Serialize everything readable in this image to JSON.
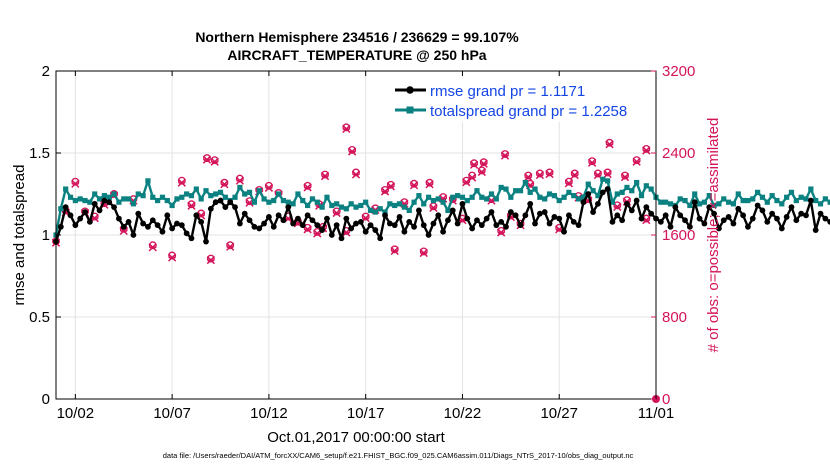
{
  "chart_data": {
    "type": "line",
    "title_line1": "Northern Hemisphere 234516 / 236629 = 99.107%",
    "title_line2": "AIRCRAFT_TEMPERATURE @ 250 hPa",
    "xlabel": "Oct.01,2017 00:00:00 start",
    "ylabel_left": "rmse and totalspread",
    "ylabel_right": "# of obs: o=possible; ×=assimilated",
    "x_tick_labels": [
      "10/02",
      "10/07",
      "10/12",
      "10/17",
      "10/22",
      "10/27",
      "11/01"
    ],
    "x_tick_days": [
      2,
      7,
      12,
      17,
      22,
      27,
      32
    ],
    "xlim": [
      1.0,
      32.0
    ],
    "ylim_left": [
      0,
      2
    ],
    "y_ticks_left": [
      "0",
      "0.5",
      "1",
      "1.5",
      "2"
    ],
    "ylim_right": [
      0,
      3200
    ],
    "y_ticks_right": [
      "0",
      "800",
      "1600",
      "2400",
      "3200"
    ],
    "time_step_days": 0.25,
    "legend_location": "top-right",
    "series": [
      {
        "name": "rmse grand pr = 1.1171",
        "color": "#000000",
        "axis": "left",
        "values": [
          0.96,
          1.05,
          1.17,
          1.12,
          1.06,
          1.1,
          1.14,
          1.08,
          1.19,
          1.15,
          1.21,
          1.2,
          1.17,
          1.1,
          1.05,
          1.08,
          1.0,
          1.13,
          1.07,
          1.05,
          1.09,
          1.06,
          1.02,
          1.12,
          1.04,
          1.07,
          1.06,
          1.01,
          0.98,
          1.12,
          1.08,
          0.96,
          1.16,
          1.2,
          1.21,
          1.17,
          1.2,
          1.17,
          1.07,
          1.13,
          1.09,
          1.05,
          1.04,
          1.07,
          1.11,
          1.05,
          1.12,
          1.09,
          1.17,
          1.07,
          1.1,
          1.06,
          1.12,
          1.09,
          1.06,
          1.03,
          1.1,
          1.0,
          1.06,
          0.98,
          1.1,
          1.04,
          1.07,
          1.08,
          1.02,
          1.06,
          1.03,
          0.98,
          1.12,
          1.07,
          1.06,
          1.11,
          1.02,
          1.08,
          1.05,
          1.15,
          1.06,
          1.0,
          1.07,
          1.12,
          1.02,
          1.09,
          1.15,
          1.07,
          1.19,
          1.1,
          1.04,
          1.09,
          1.06,
          1.1,
          1.14,
          1.06,
          1.08,
          1.05,
          1.14,
          1.12,
          1.06,
          1.12,
          1.19,
          1.07,
          1.13,
          1.14,
          1.07,
          1.11,
          1.1,
          1.02,
          1.12,
          1.08,
          1.06,
          1.2,
          1.25,
          1.14,
          1.19,
          1.26,
          1.28,
          1.08,
          1.12,
          1.09,
          1.19,
          1.15,
          1.21,
          1.1,
          1.17,
          1.13,
          1.1,
          1.08,
          1.12,
          1.05,
          1.17,
          1.12,
          1.09,
          1.05,
          1.2,
          1.1,
          1.07,
          1.17,
          1.13,
          1.04,
          1.09,
          1.11,
          1.07,
          1.16,
          1.12,
          1.05,
          1.1,
          1.18,
          1.15,
          1.08,
          1.13,
          1.1,
          1.04,
          1.11,
          1.17,
          1.09,
          1.13,
          1.12,
          1.21,
          1.03,
          1.13,
          1.1,
          1.08,
          1.12,
          1.15,
          1.04,
          1.1,
          1.09,
          1.15,
          1.2,
          1.12,
          1.07,
          0.98,
          1.06,
          1.05,
          1.06
        ]
      },
      {
        "name": "totalspread grand pr = 1.2258",
        "color": "#0b8281",
        "axis": "left",
        "values": [
          1.0,
          1.16,
          1.28,
          1.23,
          1.21,
          1.22,
          1.21,
          1.2,
          1.25,
          1.22,
          1.24,
          1.23,
          1.25,
          1.2,
          1.22,
          1.22,
          1.19,
          1.25,
          1.24,
          1.33,
          1.23,
          1.21,
          1.23,
          1.21,
          1.18,
          1.22,
          1.23,
          1.25,
          1.24,
          1.28,
          1.22,
          1.27,
          1.24,
          1.25,
          1.26,
          1.23,
          1.21,
          1.23,
          1.29,
          1.25,
          1.26,
          1.2,
          1.27,
          1.22,
          1.2,
          1.21,
          1.25,
          1.21,
          1.2,
          1.19,
          1.25,
          1.21,
          1.18,
          1.22,
          1.2,
          1.17,
          1.23,
          1.18,
          1.19,
          1.17,
          1.16,
          1.19,
          1.17,
          1.18,
          1.2,
          1.15,
          1.14,
          1.16,
          1.14,
          1.19,
          1.18,
          1.19,
          1.17,
          1.15,
          1.2,
          1.24,
          1.19,
          1.23,
          1.21,
          1.22,
          1.2,
          1.15,
          1.23,
          1.24,
          1.23,
          1.21,
          1.23,
          1.27,
          1.23,
          1.22,
          1.25,
          1.22,
          1.29,
          1.28,
          1.23,
          1.27,
          1.27,
          1.32,
          1.26,
          1.28,
          1.23,
          1.22,
          1.25,
          1.24,
          1.21,
          1.23,
          1.26,
          1.24,
          1.22,
          1.23,
          1.31,
          1.27,
          1.24,
          1.34,
          1.33,
          1.2,
          1.25,
          1.26,
          1.29,
          1.27,
          1.32,
          1.24,
          1.3,
          1.28,
          1.23,
          1.2,
          1.2,
          1.19,
          1.18,
          1.22,
          1.21,
          1.18,
          1.25,
          1.19,
          1.2,
          1.24,
          1.18,
          1.19,
          1.22,
          1.2,
          1.19,
          1.25,
          1.21,
          1.21,
          1.22,
          1.26,
          1.23,
          1.2,
          1.24,
          1.21,
          1.19,
          1.23,
          1.26,
          1.21,
          1.23,
          1.22,
          1.28,
          1.21,
          1.19,
          1.22,
          1.2,
          1.23,
          1.25,
          1.17,
          1.2,
          1.21,
          1.25,
          1.28,
          1.21,
          1.2,
          1.14,
          1.17,
          1.16,
          1.15
        ]
      }
    ],
    "obs_series": [
      {
        "name": "possible (o)",
        "color": "#d4145a",
        "axis": "right",
        "points": [
          [
            1.0,
            1540
          ],
          [
            1.5,
            1840
          ],
          [
            2.0,
            2120
          ],
          [
            2.5,
            1830
          ],
          [
            3.0,
            1780
          ],
          [
            3.5,
            1910
          ],
          [
            4.0,
            2000
          ],
          [
            4.5,
            1660
          ],
          [
            5.0,
            1950
          ],
          [
            6.0,
            1500
          ],
          [
            7.0,
            1400
          ],
          [
            7.5,
            2130
          ],
          [
            8.0,
            1900
          ],
          [
            8.5,
            1810
          ],
          [
            9.0,
            1370
          ],
          [
            10.0,
            1500
          ],
          [
            10.5,
            2150
          ],
          [
            11.0,
            1930
          ],
          [
            11.5,
            2040
          ],
          [
            12.0,
            2080
          ],
          [
            12.5,
            2010
          ],
          [
            13.0,
            1780
          ],
          [
            13.5,
            1730
          ],
          [
            14.0,
            1670
          ],
          [
            14.5,
            1630
          ],
          [
            14.8,
            1680
          ],
          [
            16.0,
            1640
          ],
          [
            16.5,
            2210
          ],
          [
            17.0,
            1780
          ],
          [
            17.5,
            1860
          ],
          [
            18.0,
            2040
          ],
          [
            18.5,
            1460
          ],
          [
            19.0,
            1920
          ],
          [
            19.5,
            2100
          ],
          [
            20.0,
            1440
          ],
          [
            20.5,
            1880
          ],
          [
            21.0,
            1970
          ],
          [
            21.5,
            1950
          ],
          [
            22.0,
            1760
          ],
          [
            22.5,
            2180
          ],
          [
            23.0,
            2230
          ],
          [
            23.5,
            1950
          ],
          [
            24.0,
            1640
          ],
          [
            24.5,
            1790
          ],
          [
            25.0,
            1710
          ],
          [
            25.5,
            2100
          ],
          [
            26.0,
            2200
          ],
          [
            26.5,
            2210
          ],
          [
            27.0,
            1670
          ],
          [
            27.5,
            2120
          ],
          [
            28.0,
            1980
          ],
          [
            28.5,
            1950
          ],
          [
            29.0,
            2200
          ],
          [
            29.5,
            2210
          ],
          [
            30.0,
            1890
          ],
          [
            30.5,
            1940
          ],
          [
            31.0,
            2330
          ],
          [
            31.5,
            2440
          ]
        ]
      },
      {
        "name": "assimilated (×)",
        "color": "#d4145a",
        "axis": "right",
        "points": [
          [
            1.0,
            1525
          ],
          [
            1.5,
            1820
          ],
          [
            2.0,
            2100
          ],
          [
            2.5,
            1815
          ],
          [
            3.0,
            1765
          ],
          [
            3.5,
            1895
          ],
          [
            4.0,
            1985
          ],
          [
            4.5,
            1640
          ],
          [
            5.0,
            1935
          ],
          [
            6.0,
            1480
          ],
          [
            7.0,
            1380
          ],
          [
            7.5,
            2110
          ],
          [
            8.0,
            1885
          ],
          [
            8.5,
            1790
          ],
          [
            9.0,
            1355
          ],
          [
            10.0,
            1485
          ],
          [
            10.5,
            2130
          ],
          [
            11.0,
            1915
          ],
          [
            11.5,
            2025
          ],
          [
            12.0,
            2060
          ],
          [
            12.5,
            1995
          ],
          [
            13.0,
            1760
          ],
          [
            13.5,
            1715
          ],
          [
            14.0,
            1655
          ],
          [
            14.5,
            1615
          ],
          [
            14.8,
            1665
          ],
          [
            16.0,
            1625
          ],
          [
            16.5,
            2190
          ],
          [
            17.0,
            1765
          ],
          [
            17.5,
            1845
          ],
          [
            18.0,
            2025
          ],
          [
            18.5,
            1445
          ],
          [
            19.0,
            1905
          ],
          [
            19.5,
            2085
          ],
          [
            20.0,
            1425
          ],
          [
            20.5,
            1865
          ],
          [
            21.0,
            1955
          ],
          [
            21.5,
            1935
          ],
          [
            22.0,
            1745
          ],
          [
            22.5,
            2160
          ],
          [
            23.0,
            2215
          ],
          [
            23.5,
            1935
          ],
          [
            24.0,
            1625
          ],
          [
            24.5,
            1775
          ],
          [
            25.0,
            1695
          ],
          [
            25.5,
            2085
          ],
          [
            26.0,
            2185
          ],
          [
            26.5,
            2195
          ],
          [
            27.0,
            1655
          ],
          [
            27.5,
            2105
          ],
          [
            28.0,
            1965
          ],
          [
            28.5,
            1935
          ],
          [
            29.0,
            2185
          ],
          [
            29.5,
            2195
          ],
          [
            30.0,
            1875
          ],
          [
            30.5,
            1925
          ],
          [
            31.0,
            2315
          ],
          [
            31.5,
            2425
          ]
        ]
      },
      {
        "name": "isolated (o)",
        "color": "#d4145a",
        "axis": "right",
        "points": [
          [
            8.8,
            2350
          ],
          [
            9.2,
            2330
          ],
          [
            9.7,
            2110
          ],
          [
            14.0,
            2080
          ],
          [
            14.6,
            1900
          ],
          [
            14.9,
            2190
          ],
          [
            15.5,
            1830
          ],
          [
            16.0,
            2650
          ],
          [
            16.3,
            2430
          ],
          [
            18.3,
            2090
          ],
          [
            20.3,
            2110
          ],
          [
            22.2,
            2130
          ],
          [
            22.6,
            2300
          ],
          [
            23.1,
            2310
          ],
          [
            24.2,
            2390
          ],
          [
            25.4,
            2180
          ],
          [
            27.8,
            2200
          ],
          [
            28.7,
            2320
          ],
          [
            29.6,
            2500
          ],
          [
            30.4,
            2180
          ],
          [
            31.5,
            1760
          ],
          [
            32.0,
            0
          ]
        ]
      }
    ]
  },
  "footer": "data file: /Users/raeder/DAI/ATM_forcXX/CAM6_setup/f.e21.FHIST_BGC.f09_025.CAM6assim.011/Diags_NTrS_2017-10/obs_diag_output.nc"
}
